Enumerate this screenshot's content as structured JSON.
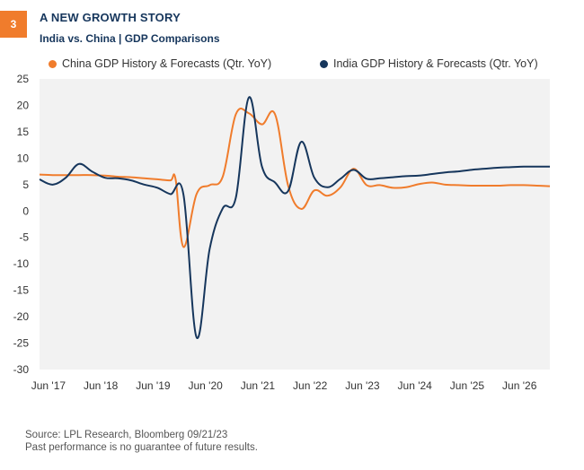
{
  "badge": "3",
  "title": "A NEW GROWTH STORY",
  "subtitle": "India vs. China | GDP Comparisons",
  "source_line": "Source: LPL Research, Bloomberg  09/21/23",
  "disclaimer": "Past performance is no guarantee of future results.",
  "colors": {
    "china": "#f07c2c",
    "india": "#16365c",
    "plot_bg": "#f2f2f2"
  },
  "chart_data": {
    "type": "line",
    "title": "A NEW GROWTH STORY",
    "xlabel": "",
    "ylabel": "",
    "ylim": [
      -30,
      25
    ],
    "xlim": [
      2017.25,
      2027.0
    ],
    "yticks": [
      25,
      20,
      15,
      10,
      5,
      0,
      -5,
      -10,
      -15,
      -20,
      -25,
      -30
    ],
    "xtick_labels": [
      "Jun '17",
      "Jun '18",
      "Jun '19",
      "Jun '20",
      "Jun '21",
      "Jun '22",
      "Jun '23",
      "Jun '24",
      "Jun '25",
      "Jun '26"
    ],
    "xtick_values": [
      2017.42,
      2018.42,
      2019.42,
      2020.42,
      2021.42,
      2022.42,
      2023.42,
      2024.42,
      2025.42,
      2026.42
    ],
    "series": [
      {
        "name": "China GDP History & Forecasts (Qtr. YoY)",
        "color": "#f07c2c",
        "x": [
          2017.25,
          2017.5,
          2017.75,
          2018.0,
          2018.25,
          2018.5,
          2018.75,
          2019.0,
          2019.25,
          2019.5,
          2019.75,
          2019.85,
          2020.0,
          2020.25,
          2020.5,
          2020.75,
          2021.0,
          2021.25,
          2021.5,
          2021.75,
          2022.0,
          2022.25,
          2022.5,
          2022.75,
          2023.0,
          2023.25,
          2023.5,
          2023.75,
          2024.0,
          2024.25,
          2024.5,
          2024.75,
          2025.0,
          2025.25,
          2025.5,
          2025.75,
          2026.0,
          2026.25,
          2026.5,
          2026.75,
          2027.0
        ],
        "values": [
          6.9,
          6.8,
          6.8,
          6.8,
          6.8,
          6.7,
          6.5,
          6.4,
          6.2,
          6.0,
          5.8,
          6.0,
          -6.8,
          3.2,
          4.9,
          6.5,
          18.3,
          18.5,
          16.4,
          18.3,
          4.8,
          0.4,
          3.9,
          2.9,
          4.5,
          8.0,
          4.9,
          4.9,
          4.4,
          4.5,
          5.1,
          5.4,
          5.0,
          4.9,
          4.8,
          4.8,
          4.8,
          4.9,
          4.9,
          4.8,
          4.7
        ]
      },
      {
        "name": "India GDP History & Forecasts (Qtr. YoY)",
        "color": "#16365c",
        "x": [
          2017.25,
          2017.5,
          2017.75,
          2018.0,
          2018.25,
          2018.5,
          2018.75,
          2019.0,
          2019.25,
          2019.5,
          2019.75,
          2020.0,
          2020.25,
          2020.5,
          2020.75,
          2021.0,
          2021.25,
          2021.5,
          2021.75,
          2022.0,
          2022.25,
          2022.5,
          2022.75,
          2023.0,
          2023.25,
          2023.5,
          2023.75,
          2024.0,
          2024.25,
          2024.5,
          2024.75,
          2025.0,
          2025.25,
          2025.5,
          2025.75,
          2026.0,
          2026.25,
          2026.5,
          2026.75,
          2027.0
        ],
        "values": [
          6.0,
          5.0,
          6.3,
          8.9,
          7.5,
          6.3,
          6.2,
          5.8,
          5.0,
          4.4,
          3.2,
          3.1,
          -23.9,
          -7.2,
          0.5,
          2.5,
          21.5,
          8.4,
          5.4,
          3.8,
          13.1,
          6.3,
          4.5,
          6.1,
          7.8,
          6.1,
          6.2,
          6.4,
          6.6,
          6.7,
          7.0,
          7.3,
          7.5,
          7.8,
          8.0,
          8.2,
          8.3,
          8.4,
          8.4,
          8.4
        ]
      }
    ]
  }
}
